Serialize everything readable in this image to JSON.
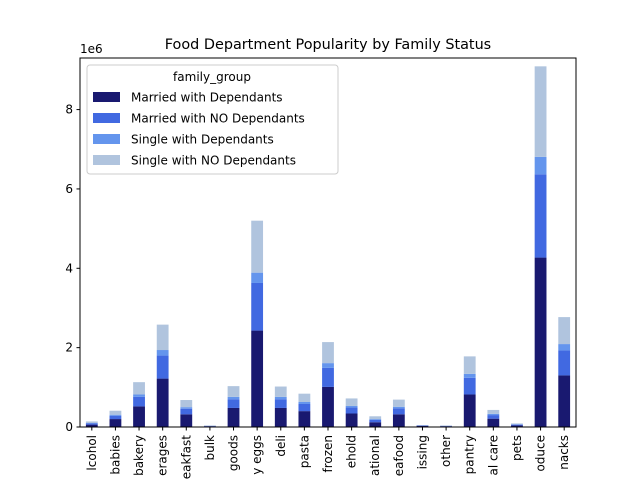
{
  "chart_data": {
    "type": "bar",
    "stacked": true,
    "title": "Food Department Popularity by Family Status",
    "xlabel": "",
    "ylabel": "",
    "y_offset_text": "1e6",
    "ylim": [
      0,
      9.3
    ],
    "yticks": [
      0,
      2,
      4,
      6,
      8
    ],
    "grid": false,
    "legend": {
      "title": "family_group",
      "placement": "top-left"
    },
    "categories": [
      "lcohol",
      "babies",
      "bakery",
      "erages",
      "eakfast",
      "bulk",
      "goods",
      "y eggs",
      "deli",
      "pasta",
      "frozen",
      "ehold",
      "ational",
      "eafood",
      "issing",
      "other",
      "pantry",
      "al care",
      "pets",
      "oduce",
      "nacks"
    ],
    "series": [
      {
        "name": "Married with Dependants",
        "color": "#191970",
        "values": [
          0.06,
          0.2,
          0.52,
          1.22,
          0.32,
          0.02,
          0.48,
          2.43,
          0.48,
          0.4,
          1.01,
          0.34,
          0.12,
          0.32,
          0.03,
          0.02,
          0.82,
          0.21,
          0.04,
          4.27,
          1.3
        ]
      },
      {
        "name": "Married with NO Dependants",
        "color": "#4169E1",
        "values": [
          0.03,
          0.08,
          0.24,
          0.58,
          0.14,
          0.01,
          0.22,
          1.2,
          0.22,
          0.18,
          0.48,
          0.15,
          0.06,
          0.15,
          0.01,
          0.01,
          0.42,
          0.09,
          0.02,
          2.1,
          0.63
        ]
      },
      {
        "name": "Single with Dependants",
        "color": "#6495ED",
        "values": [
          0.01,
          0.03,
          0.06,
          0.14,
          0.04,
          0.0,
          0.06,
          0.26,
          0.06,
          0.05,
          0.12,
          0.04,
          0.02,
          0.04,
          0.0,
          0.0,
          0.1,
          0.03,
          0.01,
          0.44,
          0.16
        ]
      },
      {
        "name": "Single with NO Dependants",
        "color": "#B0C4DE",
        "values": [
          0.04,
          0.1,
          0.31,
          0.64,
          0.18,
          0.01,
          0.27,
          1.31,
          0.26,
          0.21,
          0.53,
          0.19,
          0.07,
          0.18,
          0.01,
          0.01,
          0.44,
          0.1,
          0.02,
          2.28,
          0.68
        ]
      }
    ]
  }
}
